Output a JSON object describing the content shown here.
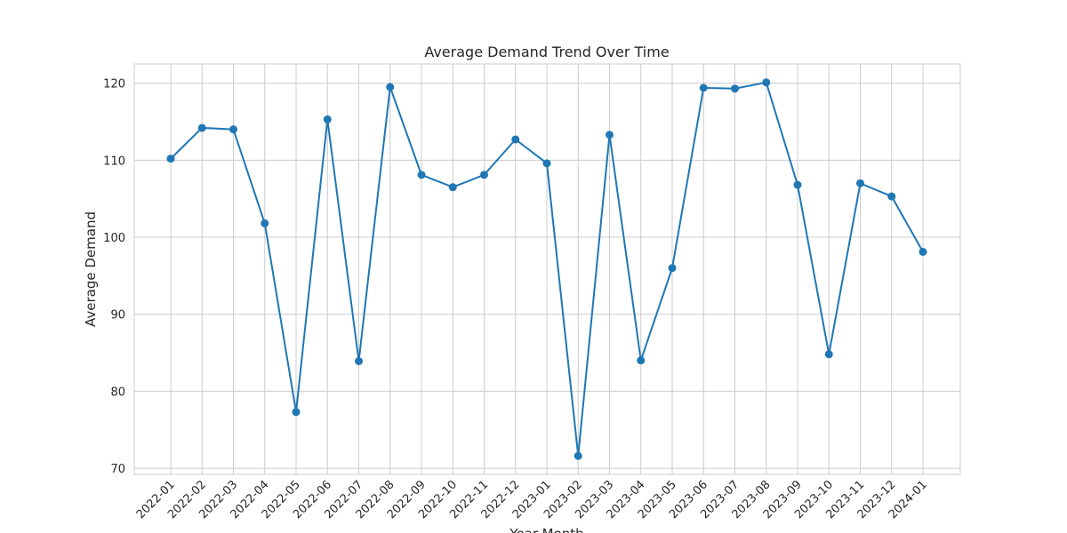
{
  "chart_data": {
    "type": "line",
    "title": "Average Demand Trend Over Time",
    "x_label": "Year-Month",
    "y_label": "Average Demand",
    "categories": [
      "2022-01",
      "2022-02",
      "2022-03",
      "2022-04",
      "2022-05",
      "2022-06",
      "2022-07",
      "2022-08",
      "2022-09",
      "2022-10",
      "2022-11",
      "2022-12",
      "2023-01",
      "2023-02",
      "2023-03",
      "2023-04",
      "2023-05",
      "2023-06",
      "2023-07",
      "2023-08",
      "2023-09",
      "2023-10",
      "2023-11",
      "2023-12",
      "2024-01"
    ],
    "series": [
      {
        "name": "Average Demand",
        "color": "#1f77b4",
        "values": [
          110.2,
          114.2,
          114.0,
          101.8,
          77.3,
          115.3,
          83.9,
          119.5,
          108.1,
          106.5,
          108.1,
          112.7,
          109.6,
          71.6,
          113.3,
          84.0,
          96.0,
          119.4,
          119.3,
          120.1,
          106.8,
          84.8,
          107.0,
          105.3,
          98.1
        ]
      }
    ],
    "ylim": [
      69.2,
      122.5
    ],
    "yticks": [
      70,
      80,
      90,
      100,
      110,
      120
    ],
    "grid": true,
    "marker": "circle"
  }
}
